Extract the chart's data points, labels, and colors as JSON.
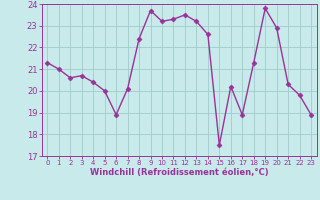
{
  "x": [
    0,
    1,
    2,
    3,
    4,
    5,
    6,
    7,
    8,
    9,
    10,
    11,
    12,
    13,
    14,
    15,
    16,
    17,
    18,
    19,
    20,
    21,
    22,
    23
  ],
  "y": [
    21.3,
    21.0,
    20.6,
    20.7,
    20.4,
    20.0,
    18.9,
    20.1,
    22.4,
    23.7,
    23.2,
    23.3,
    23.5,
    23.2,
    22.6,
    17.5,
    20.2,
    18.9,
    21.3,
    23.8,
    22.9,
    20.3,
    19.8,
    18.9
  ],
  "line_color": "#993399",
  "marker": "D",
  "markersize": 2.5,
  "linewidth": 1.0,
  "bg_color": "#c8eaea",
  "grid_color": "#a0cccc",
  "xlabel": "Windchill (Refroidissement éolien,°C)",
  "xlabel_color": "#993399",
  "tick_color": "#993399",
  "ylim": [
    17,
    24
  ],
  "xlim_min": -0.5,
  "xlim_max": 23.5,
  "yticks": [
    17,
    18,
    19,
    20,
    21,
    22,
    23,
    24
  ],
  "xticks": [
    0,
    1,
    2,
    3,
    4,
    5,
    6,
    7,
    8,
    9,
    10,
    11,
    12,
    13,
    14,
    15,
    16,
    17,
    18,
    19,
    20,
    21,
    22,
    23
  ],
  "xlabel_fontsize": 6.0,
  "xtick_fontsize": 5.0,
  "ytick_fontsize": 6.0
}
